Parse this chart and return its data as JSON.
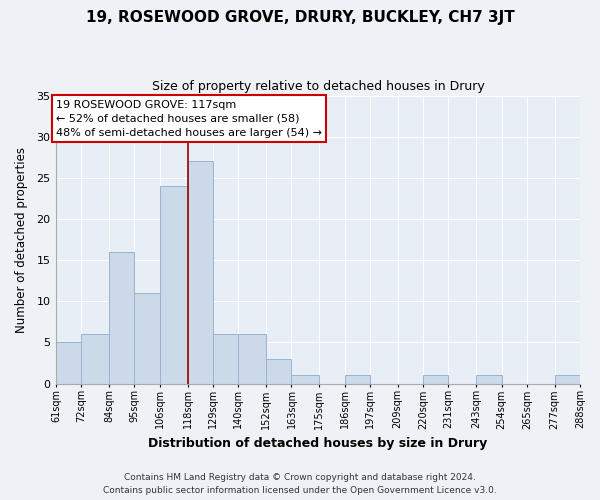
{
  "title": "19, ROSEWOOD GROVE, DRURY, BUCKLEY, CH7 3JT",
  "subtitle": "Size of property relative to detached houses in Drury",
  "xlabel": "Distribution of detached houses by size in Drury",
  "ylabel": "Number of detached properties",
  "bar_edges": [
    61,
    72,
    84,
    95,
    106,
    118,
    129,
    140,
    152,
    163,
    175,
    186,
    197,
    209,
    220,
    231,
    243,
    254,
    265,
    277,
    288
  ],
  "bar_heights": [
    5,
    6,
    16,
    11,
    24,
    27,
    6,
    6,
    3,
    1,
    0,
    1,
    0,
    0,
    1,
    0,
    1,
    0,
    0,
    1
  ],
  "bar_color": "#ccd9e8",
  "bar_edgecolor": "#9ab3cc",
  "vline_x": 118,
  "vline_color": "#990000",
  "annotation_line1": "19 ROSEWOOD GROVE: 117sqm",
  "annotation_line2": "← 52% of detached houses are smaller (58)",
  "annotation_line3": "48% of semi-detached houses are larger (54) →",
  "annotation_box_edgecolor": "#cc0000",
  "annotation_box_facecolor": "white",
  "ylim": [
    0,
    35
  ],
  "yticks": [
    0,
    5,
    10,
    15,
    20,
    25,
    30,
    35
  ],
  "tick_labels": [
    "61sqm",
    "72sqm",
    "84sqm",
    "95sqm",
    "106sqm",
    "118sqm",
    "129sqm",
    "140sqm",
    "152sqm",
    "163sqm",
    "175sqm",
    "186sqm",
    "197sqm",
    "209sqm",
    "220sqm",
    "231sqm",
    "243sqm",
    "254sqm",
    "265sqm",
    "277sqm",
    "288sqm"
  ],
  "footer_line1": "Contains HM Land Registry data © Crown copyright and database right 2024.",
  "footer_line2": "Contains public sector information licensed under the Open Government Licence v3.0.",
  "background_color": "#eef2f7",
  "plot_bg_color": "#e8eef5"
}
